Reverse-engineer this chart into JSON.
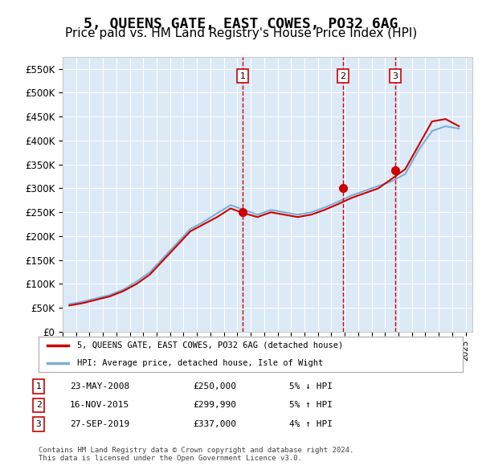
{
  "title": "5, QUEENS GATE, EAST COWES, PO32 6AG",
  "subtitle": "Price paid vs. HM Land Registry's House Price Index (HPI)",
  "title_fontsize": 13,
  "subtitle_fontsize": 11,
  "background_color": "#ffffff",
  "plot_bg_color": "#dce9f7",
  "grid_color": "#ffffff",
  "ylim": [
    0,
    575000
  ],
  "yticks": [
    0,
    50000,
    100000,
    150000,
    200000,
    250000,
    300000,
    350000,
    400000,
    450000,
    500000,
    550000
  ],
  "ytick_labels": [
    "£0",
    "£50K",
    "£100K",
    "£150K",
    "£200K",
    "£250K",
    "£300K",
    "£350K",
    "£400K",
    "£450K",
    "£500K",
    "£550K"
  ],
  "hpi_color": "#7bafd4",
  "price_color": "#cc0000",
  "transaction_color": "#cc0000",
  "vline_color": "#cc0000",
  "transactions": [
    {
      "date_num": 2008.39,
      "price": 250000,
      "label": "1"
    },
    {
      "date_num": 2015.88,
      "price": 299990,
      "label": "2"
    },
    {
      "date_num": 2019.74,
      "price": 337000,
      "label": "3"
    }
  ],
  "legend_entries": [
    {
      "label": "5, QUEENS GATE, EAST COWES, PO32 6AG (detached house)",
      "color": "#cc0000"
    },
    {
      "label": "HPI: Average price, detached house, Isle of Wight",
      "color": "#7bafd4"
    }
  ],
  "table_rows": [
    {
      "num": "1",
      "date": "23-MAY-2008",
      "price": "£250,000",
      "hpi": "5% ↓ HPI"
    },
    {
      "num": "2",
      "date": "16-NOV-2015",
      "price": "£299,990",
      "hpi": "5% ↑ HPI"
    },
    {
      "num": "3",
      "date": "27-SEP-2019",
      "price": "£337,000",
      "hpi": "4% ↑ HPI"
    }
  ],
  "footer": "Contains HM Land Registry data © Crown copyright and database right 2024.\nThis data is licensed under the Open Government Licence v3.0.",
  "xlim_start": 1995.0,
  "xlim_end": 2025.5
}
